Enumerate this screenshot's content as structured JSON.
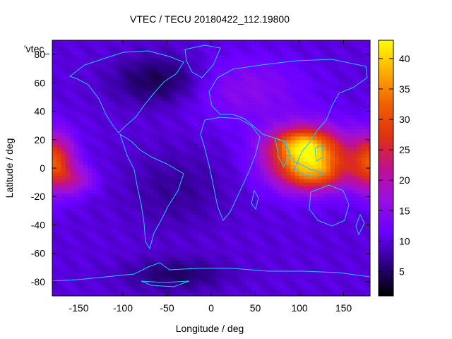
{
  "chart_data": {
    "type": "heatmap",
    "title": "VTEC / TECU 20180422_112.19800",
    "xlabel": "Longitude / deg",
    "ylabel": "Latitude / deg",
    "legend_key": "'vtec_",
    "xlim": [
      -180,
      180
    ],
    "ylim": [
      -90,
      90
    ],
    "x_ticks": [
      -150,
      -100,
      -50,
      0,
      50,
      100,
      150
    ],
    "y_ticks": [
      -80,
      -60,
      -40,
      -20,
      0,
      20,
      40,
      60,
      80
    ],
    "colorbar": {
      "range": [
        1,
        43
      ],
      "ticks": [
        5,
        10,
        15,
        20,
        25,
        30,
        35,
        40
      ],
      "colormap": "black-purple-red-orange-yellow"
    },
    "grid_resolution_deg": [
      5,
      2.5
    ],
    "features": [
      {
        "lon": 110,
        "lat": 8,
        "amp": 28,
        "sig_lon": 32,
        "sig_lat": 14
      },
      {
        "lon": 100,
        "lat": 18,
        "amp": 10,
        "sig_lon": 22,
        "sig_lat": 7
      },
      {
        "lon": 118,
        "lat": -5,
        "amp": 8,
        "sig_lon": 25,
        "sig_lat": 8
      },
      {
        "lon": -178,
        "lat": 4,
        "amp": 19,
        "sig_lon": 16,
        "sig_lat": 14
      },
      {
        "lon": -150,
        "lat": -8,
        "amp": 7,
        "sig_lon": 14,
        "sig_lat": 7
      },
      {
        "lon": 40,
        "lat": 55,
        "amp": 5,
        "sig_lon": 45,
        "sig_lat": 16
      },
      {
        "lon": -60,
        "lat": 62,
        "amp": -6,
        "sig_lon": 35,
        "sig_lat": 12
      },
      {
        "lon": -40,
        "lat": -75,
        "amp": -5,
        "sig_lon": 40,
        "sig_lat": 8
      },
      {
        "lon": -40,
        "lat": -15,
        "amp": -3,
        "sig_lon": 40,
        "sig_lat": 20
      }
    ],
    "base_vtec": 10
  }
}
